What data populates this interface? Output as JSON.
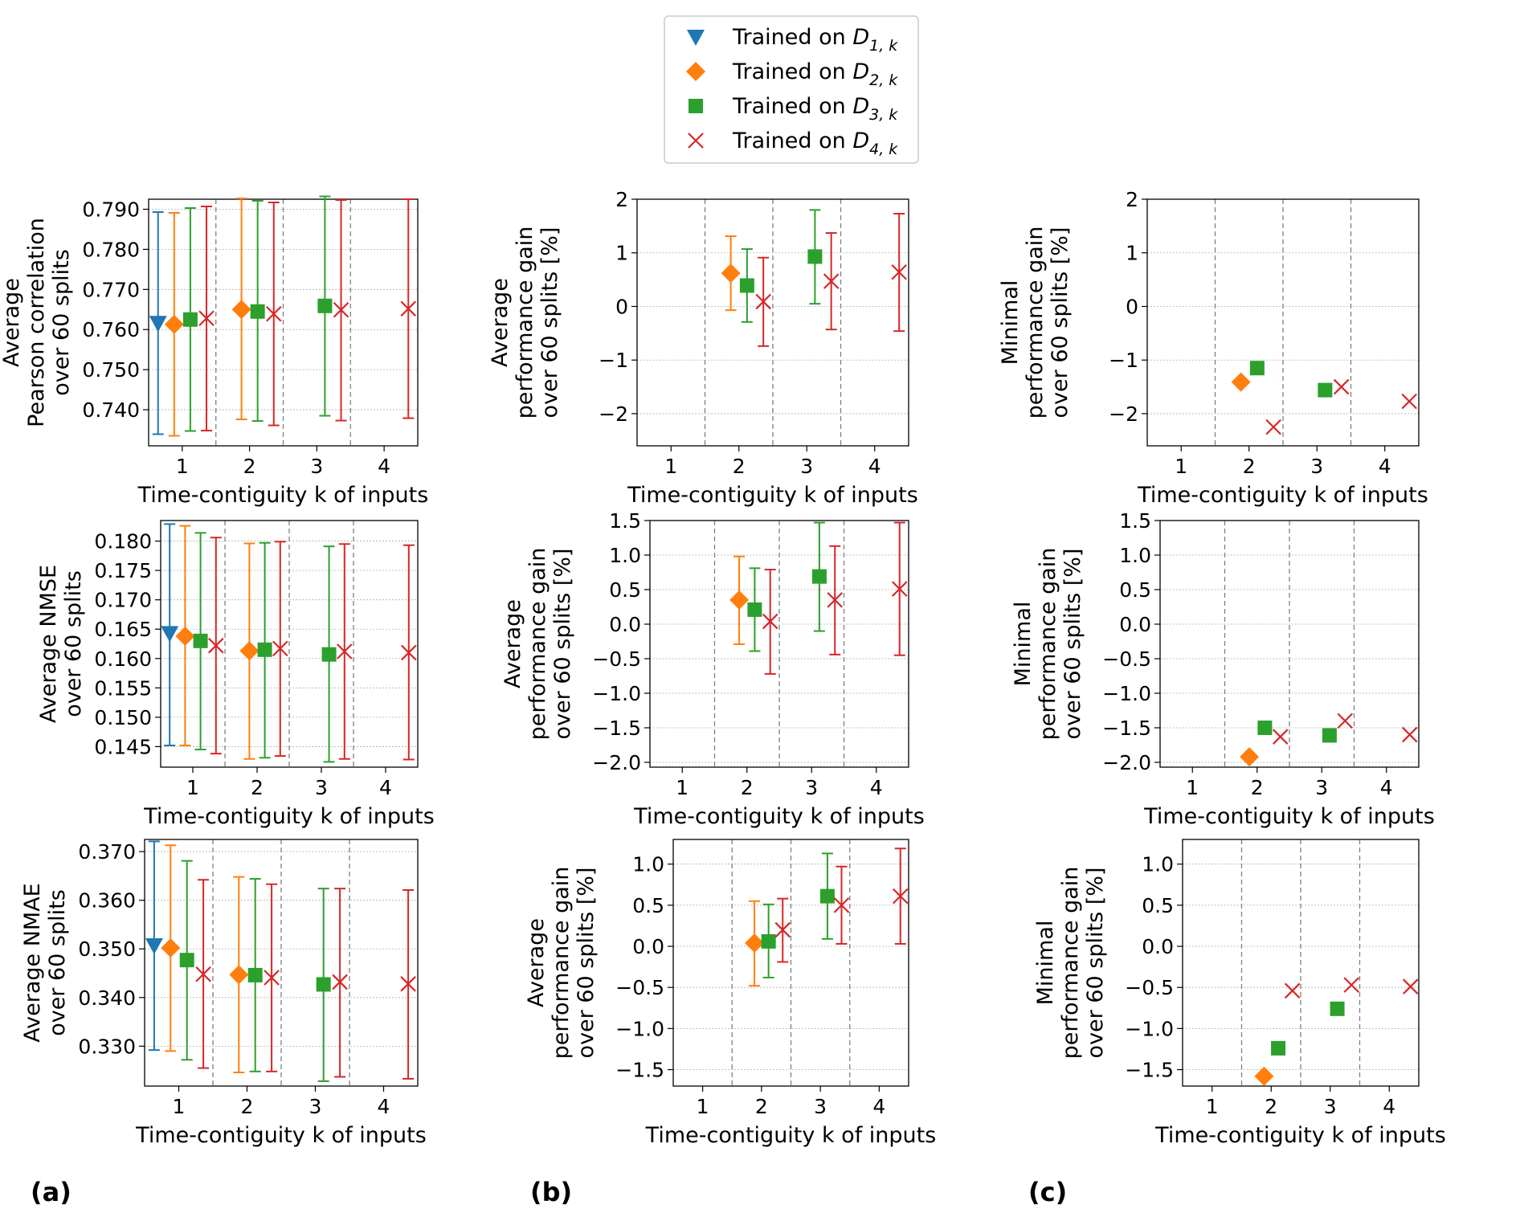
{
  "legend": {
    "entries": [
      {
        "prefix": "Trained on ",
        "symbol": "D",
        "sub": "1, k",
        "color": "#1f77b4",
        "marker": "triangle-down"
      },
      {
        "prefix": "Trained on ",
        "symbol": "D",
        "sub": "2, k",
        "color": "#ff7f0e",
        "marker": "diamond"
      },
      {
        "prefix": "Trained on ",
        "symbol": "D",
        "sub": "3, k",
        "color": "#2ca02c",
        "marker": "square"
      },
      {
        "prefix": "Trained on ",
        "symbol": "D",
        "sub": "4, k",
        "color": "#d62728",
        "marker": "x"
      }
    ]
  },
  "panel_labels": [
    "(a)",
    "(b)",
    "(c)"
  ],
  "chart_data": [
    {
      "type": "scatter",
      "panel": "a-top",
      "xlabel": "Time-contiguity k of inputs",
      "ylabel": [
        "Average",
        "Pearson correlation",
        "over 60 splits"
      ],
      "categories": [
        "1",
        "2",
        "3",
        "4"
      ],
      "ylim": [
        0.731,
        0.7925
      ],
      "yticks": [
        0.74,
        0.75,
        0.76,
        0.77,
        0.78,
        0.79
      ],
      "ytick_labels": [
        "0.740",
        "0.750",
        "0.760",
        "0.770",
        "0.780",
        "0.790"
      ],
      "series": [
        {
          "name": "Trained on D1,k",
          "points": [
            {
              "k": 1,
              "y": 0.7616,
              "lo": 0.7339,
              "hi": 0.7893
            }
          ]
        },
        {
          "name": "Trained on D2,k",
          "points": [
            {
              "k": 1,
              "y": 0.7613,
              "lo": 0.7335,
              "hi": 0.7891
            },
            {
              "k": 2,
              "y": 0.765,
              "lo": 0.7376,
              "hi": 0.7927
            }
          ]
        },
        {
          "name": "Trained on D3,k",
          "points": [
            {
              "k": 1,
              "y": 0.7625,
              "lo": 0.7347,
              "hi": 0.7903
            },
            {
              "k": 2,
              "y": 0.7645,
              "lo": 0.7372,
              "hi": 0.7921
            },
            {
              "k": 3,
              "y": 0.7659,
              "lo": 0.7385,
              "hi": 0.7932
            }
          ]
        },
        {
          "name": "Trained on D4,k",
          "points": [
            {
              "k": 1,
              "y": 0.7628,
              "lo": 0.7348,
              "hi": 0.7907
            },
            {
              "k": 2,
              "y": 0.7639,
              "lo": 0.7361,
              "hi": 0.7917
            },
            {
              "k": 3,
              "y": 0.7649,
              "lo": 0.7373,
              "hi": 0.7923
            },
            {
              "k": 4,
              "y": 0.7652,
              "lo": 0.7379,
              "hi": 0.7925
            }
          ]
        }
      ]
    },
    {
      "type": "scatter",
      "panel": "b-top",
      "xlabel": "Time-contiguity k of inputs",
      "ylabel": [
        "Average",
        "performance gain",
        "over 60 splits [%]"
      ],
      "categories": [
        "1",
        "2",
        "3",
        "4"
      ],
      "ylim": [
        -2.6,
        2.0
      ],
      "yticks": [
        -2,
        -1,
        0,
        1,
        2
      ],
      "ytick_labels": [
        "−2",
        "−1",
        "0",
        "1",
        "2"
      ],
      "series": [
        {
          "name": "Trained on D2,k",
          "points": [
            {
              "k": 2,
              "y": 0.62,
              "lo": -0.07,
              "hi": 1.31
            }
          ]
        },
        {
          "name": "Trained on D3,k",
          "points": [
            {
              "k": 2,
              "y": 0.39,
              "lo": -0.29,
              "hi": 1.07
            },
            {
              "k": 3,
              "y": 0.93,
              "lo": 0.05,
              "hi": 1.8
            }
          ]
        },
        {
          "name": "Trained on D4,k",
          "points": [
            {
              "k": 2,
              "y": 0.09,
              "lo": -0.74,
              "hi": 0.91
            },
            {
              "k": 3,
              "y": 0.47,
              "lo": -0.43,
              "hi": 1.37
            },
            {
              "k": 4,
              "y": 0.64,
              "lo": -0.46,
              "hi": 1.73
            }
          ]
        }
      ]
    },
    {
      "type": "scatter",
      "panel": "c-top",
      "xlabel": "Time-contiguity k of inputs",
      "ylabel": [
        "Minimal",
        "performance gain",
        "over 60 splits [%]"
      ],
      "categories": [
        "1",
        "2",
        "3",
        "4"
      ],
      "ylim": [
        -2.6,
        2.0
      ],
      "yticks": [
        -2,
        -1,
        0,
        1,
        2
      ],
      "ytick_labels": [
        "−2",
        "−1",
        "0",
        "1",
        "2"
      ],
      "series": [
        {
          "name": "Trained on D2,k",
          "points": [
            {
              "k": 2,
              "y": -1.41
            }
          ]
        },
        {
          "name": "Trained on D3,k",
          "points": [
            {
              "k": 2,
              "y": -1.15
            },
            {
              "k": 3,
              "y": -1.56
            }
          ]
        },
        {
          "name": "Trained on D4,k",
          "points": [
            {
              "k": 2,
              "y": -2.25
            },
            {
              "k": 3,
              "y": -1.5
            },
            {
              "k": 4,
              "y": -1.77
            }
          ]
        }
      ]
    },
    {
      "type": "scatter",
      "panel": "a-mid",
      "xlabel": "Time-contiguity k of inputs",
      "ylabel": [
        "Average NMSE",
        "over 60 splits"
      ],
      "categories": [
        "1",
        "2",
        "3",
        "4"
      ],
      "ylim": [
        0.1415,
        0.1835
      ],
      "yticks": [
        0.145,
        0.15,
        0.155,
        0.16,
        0.165,
        0.17,
        0.175,
        0.18
      ],
      "ytick_labels": [
        "0.145",
        "0.150",
        "0.155",
        "0.160",
        "0.165",
        "0.170",
        "0.175",
        "0.180"
      ],
      "series": [
        {
          "name": "Trained on D1,k",
          "points": [
            {
              "k": 1,
              "y": 0.1643,
              "lo": 0.1452,
              "hi": 0.1829
            }
          ]
        },
        {
          "name": "Trained on D2,k",
          "points": [
            {
              "k": 1,
              "y": 0.1638,
              "lo": 0.1452,
              "hi": 0.1826
            },
            {
              "k": 2,
              "y": 0.1613,
              "lo": 0.1429,
              "hi": 0.1796
            }
          ]
        },
        {
          "name": "Trained on D3,k",
          "points": [
            {
              "k": 1,
              "y": 0.163,
              "lo": 0.1445,
              "hi": 0.1814
            },
            {
              "k": 2,
              "y": 0.1615,
              "lo": 0.1431,
              "hi": 0.1797
            },
            {
              "k": 3,
              "y": 0.1607,
              "lo": 0.1424,
              "hi": 0.1791
            }
          ]
        },
        {
          "name": "Trained on D4,k",
          "points": [
            {
              "k": 1,
              "y": 0.1622,
              "lo": 0.1438,
              "hi": 0.1806
            },
            {
              "k": 2,
              "y": 0.1617,
              "lo": 0.1434,
              "hi": 0.1799
            },
            {
              "k": 3,
              "y": 0.1612,
              "lo": 0.1429,
              "hi": 0.1795
            },
            {
              "k": 4,
              "y": 0.161,
              "lo": 0.1428,
              "hi": 0.1793
            }
          ]
        }
      ]
    },
    {
      "type": "scatter",
      "panel": "b-mid",
      "xlabel": "Time-contiguity k of inputs",
      "ylabel": [
        "Average",
        "performance gain",
        "over 60 splits [%]"
      ],
      "categories": [
        "1",
        "2",
        "3",
        "4"
      ],
      "ylim": [
        -2.07,
        1.5
      ],
      "yticks": [
        -2.0,
        -1.5,
        -1.0,
        -0.5,
        0.0,
        0.5,
        1.0,
        1.5
      ],
      "ytick_labels": [
        "−2.0",
        "−1.5",
        "−1.0",
        "−0.5",
        "0.0",
        "0.5",
        "1.0",
        "1.5"
      ],
      "series": [
        {
          "name": "Trained on D2,k",
          "points": [
            {
              "k": 2,
              "y": 0.35,
              "lo": -0.29,
              "hi": 0.98
            }
          ]
        },
        {
          "name": "Trained on D3,k",
          "points": [
            {
              "k": 2,
              "y": 0.21,
              "lo": -0.39,
              "hi": 0.81
            },
            {
              "k": 3,
              "y": 0.69,
              "lo": -0.1,
              "hi": 1.47
            }
          ]
        },
        {
          "name": "Trained on D4,k",
          "points": [
            {
              "k": 2,
              "y": 0.04,
              "lo": -0.72,
              "hi": 0.79
            },
            {
              "k": 3,
              "y": 0.35,
              "lo": -0.44,
              "hi": 1.13
            },
            {
              "k": 4,
              "y": 0.51,
              "lo": -0.45,
              "hi": 1.47
            }
          ]
        }
      ]
    },
    {
      "type": "scatter",
      "panel": "c-mid",
      "xlabel": "Time-contiguity k of inputs",
      "ylabel": [
        "Minimal",
        "performance gain",
        "over 60 splits [%]"
      ],
      "categories": [
        "1",
        "2",
        "3",
        "4"
      ],
      "ylim": [
        -2.07,
        1.5
      ],
      "yticks": [
        -2.0,
        -1.5,
        -1.0,
        -0.5,
        0.0,
        0.5,
        1.0,
        1.5
      ],
      "ytick_labels": [
        "−2.0",
        "−1.5",
        "−1.0",
        "−0.5",
        "0.0",
        "0.5",
        "1.0",
        "1.5"
      ],
      "series": [
        {
          "name": "Trained on D2,k",
          "points": [
            {
              "k": 2,
              "y": -1.92
            }
          ]
        },
        {
          "name": "Trained on D3,k",
          "points": [
            {
              "k": 2,
              "y": -1.5
            },
            {
              "k": 3,
              "y": -1.61
            }
          ]
        },
        {
          "name": "Trained on D4,k",
          "points": [
            {
              "k": 2,
              "y": -1.63
            },
            {
              "k": 3,
              "y": -1.4
            },
            {
              "k": 4,
              "y": -1.6
            }
          ]
        }
      ]
    },
    {
      "type": "scatter",
      "panel": "a-bot",
      "xlabel": "Time-contiguity k of inputs",
      "ylabel": [
        "Average NMAE",
        "over 60 splits"
      ],
      "categories": [
        "1",
        "2",
        "3",
        "4"
      ],
      "ylim": [
        0.3218,
        0.3725
      ],
      "yticks": [
        0.33,
        0.34,
        0.35,
        0.36,
        0.37
      ],
      "ytick_labels": [
        "0.330",
        "0.340",
        "0.350",
        "0.360",
        "0.370"
      ],
      "series": [
        {
          "name": "Trained on D1,k",
          "points": [
            {
              "k": 1,
              "y": 0.3507,
              "lo": 0.3292,
              "hi": 0.3721
            }
          ]
        },
        {
          "name": "Trained on D2,k",
          "points": [
            {
              "k": 1,
              "y": 0.3502,
              "lo": 0.329,
              "hi": 0.3713
            },
            {
              "k": 2,
              "y": 0.3447,
              "lo": 0.3246,
              "hi": 0.3648
            }
          ]
        },
        {
          "name": "Trained on D3,k",
          "points": [
            {
              "k": 1,
              "y": 0.3477,
              "lo": 0.3272,
              "hi": 0.3681
            },
            {
              "k": 2,
              "y": 0.3446,
              "lo": 0.3248,
              "hi": 0.3644
            },
            {
              "k": 3,
              "y": 0.3427,
              "lo": 0.3228,
              "hi": 0.3624
            }
          ]
        },
        {
          "name": "Trained on D4,k",
          "points": [
            {
              "k": 1,
              "y": 0.3448,
              "lo": 0.3255,
              "hi": 0.3642
            },
            {
              "k": 2,
              "y": 0.3441,
              "lo": 0.3248,
              "hi": 0.3633
            },
            {
              "k": 3,
              "y": 0.3432,
              "lo": 0.3237,
              "hi": 0.3624
            },
            {
              "k": 4,
              "y": 0.3428,
              "lo": 0.3233,
              "hi": 0.3621
            }
          ]
        }
      ]
    },
    {
      "type": "scatter",
      "panel": "b-bot",
      "xlabel": "Time-contiguity k of inputs",
      "ylabel": [
        "Average",
        "performance gain",
        "over 60 splits [%]"
      ],
      "categories": [
        "1",
        "2",
        "3",
        "4"
      ],
      "ylim": [
        -1.7,
        1.3
      ],
      "yticks": [
        -1.5,
        -1.0,
        -0.5,
        0.0,
        0.5,
        1.0
      ],
      "ytick_labels": [
        "−1.5",
        "−1.0",
        "−0.5",
        "0.0",
        "0.5",
        "1.0"
      ],
      "series": [
        {
          "name": "Trained on D2,k",
          "points": [
            {
              "k": 2,
              "y": 0.04,
              "lo": -0.48,
              "hi": 0.55
            }
          ]
        },
        {
          "name": "Trained on D3,k",
          "points": [
            {
              "k": 2,
              "y": 0.06,
              "lo": -0.38,
              "hi": 0.51
            },
            {
              "k": 3,
              "y": 0.61,
              "lo": 0.09,
              "hi": 1.13
            }
          ]
        },
        {
          "name": "Trained on D4,k",
          "points": [
            {
              "k": 2,
              "y": 0.2,
              "lo": -0.19,
              "hi": 0.58
            },
            {
              "k": 3,
              "y": 0.5,
              "lo": 0.03,
              "hi": 0.97
            },
            {
              "k": 4,
              "y": 0.61,
              "lo": 0.03,
              "hi": 1.19
            }
          ]
        }
      ]
    },
    {
      "type": "scatter",
      "panel": "c-bot",
      "xlabel": "Time-contiguity k of inputs",
      "ylabel": [
        "Minimal",
        "performance gain",
        "over 60 splits [%]"
      ],
      "categories": [
        "1",
        "2",
        "3",
        "4"
      ],
      "ylim": [
        -1.7,
        1.3
      ],
      "yticks": [
        -1.5,
        -1.0,
        -0.5,
        0.0,
        0.5,
        1.0
      ],
      "ytick_labels": [
        "−1.5",
        "−1.0",
        "−0.5",
        "0.0",
        "0.5",
        "1.0"
      ],
      "series": [
        {
          "name": "Trained on D2,k",
          "points": [
            {
              "k": 2,
              "y": -1.58
            }
          ]
        },
        {
          "name": "Trained on D3,k",
          "points": [
            {
              "k": 2,
              "y": -1.24
            },
            {
              "k": 3,
              "y": -0.76
            }
          ]
        },
        {
          "name": "Trained on D4,k",
          "points": [
            {
              "k": 2,
              "y": -0.54
            },
            {
              "k": 3,
              "y": -0.47
            },
            {
              "k": 4,
              "y": -0.49
            }
          ]
        }
      ]
    }
  ]
}
